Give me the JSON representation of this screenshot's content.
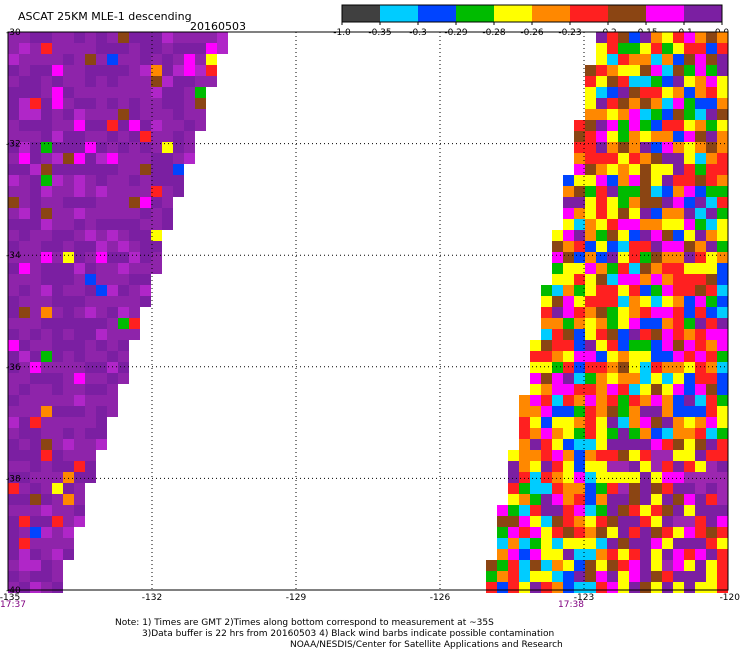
{
  "header": {
    "title": "ASCAT 25KM MLE-1 descending",
    "date": "20160503"
  },
  "colorbar": {
    "colors": [
      "#404040",
      "#00ccff",
      "#0044ff",
      "#00bb00",
      "#ffff00",
      "#ff8800",
      "#ff2020",
      "#8b4513",
      "#ff00ff",
      "#7b1fa2"
    ],
    "tick_labels": [
      "-1.0",
      "-0.35",
      "-0.3",
      "-0.29",
      "-0.28",
      "-0.26",
      "-0.23",
      "-0.2",
      "-0.15",
      "-0.1",
      "0.0"
    ]
  },
  "map": {
    "lon_range": [
      -135,
      -120
    ],
    "lat_range": [
      -40,
      -30
    ],
    "lon_ticks": [
      "-135",
      "-132",
      "-129",
      "-126",
      "-123",
      "-120"
    ],
    "lat_ticks": [
      "-30",
      "-32",
      "-34",
      "-36",
      "-38",
      "-40"
    ],
    "grid_style": "dotted",
    "swaths": [
      {
        "name": "west",
        "time": "17:37"
      },
      {
        "name": "east",
        "time": "17:38"
      }
    ]
  },
  "notes": {
    "line1": "Note: 1) Times are GMT 2)Times along bottom correspond to measurement at ~35S",
    "line2": "3)Data buffer is 22 hrs from 20160503 4) Black wind barbs indicate possible contamination",
    "line3": "NOAA/NESDIS/Center for Satellite Applications and Research"
  }
}
